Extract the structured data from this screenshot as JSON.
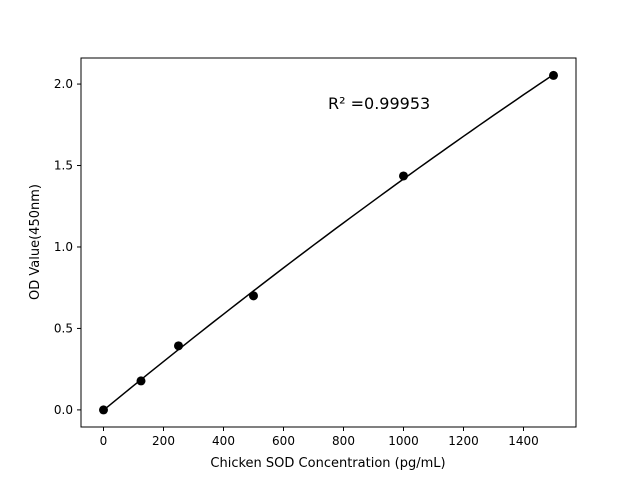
{
  "chart_data": {
    "type": "scatter",
    "title": "",
    "xlabel": "Chicken SOD Concentration (pg/mL)",
    "ylabel": "OD Value(450nm)",
    "xlim": [
      -75,
      1575
    ],
    "ylim": [
      -0.105,
      2.16
    ],
    "xticks": [
      0,
      200,
      400,
      600,
      800,
      1000,
      1200,
      1400
    ],
    "yticks": [
      0.0,
      0.5,
      1.0,
      1.5,
      2.0
    ],
    "ytick_labels": [
      "0.0",
      "0.5",
      "1.0",
      "1.5",
      "2.0"
    ],
    "grid": false,
    "points": {
      "x": [
        0,
        125,
        250,
        500,
        1000,
        1500
      ],
      "y": [
        0.0,
        0.178,
        0.393,
        0.7,
        1.436,
        2.053
      ]
    },
    "fit_line": "polynomial fit through points",
    "annotation": "R² =0.99953",
    "marker_color": "#000000",
    "line_color": "#000000"
  }
}
